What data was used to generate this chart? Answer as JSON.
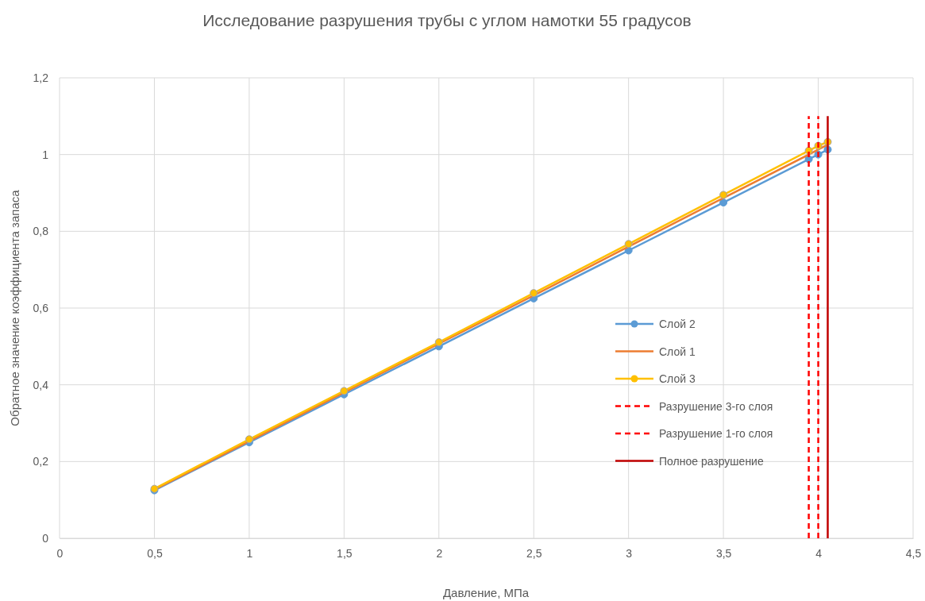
{
  "chart_data": {
    "type": "line",
    "title": "Исследование разрушения трубы с углом намотки 55 градусов",
    "xlabel": "Давление, МПа",
    "ylabel": "Обратное значение коэффициента запаса",
    "x": [
      0.5,
      1,
      1.5,
      2,
      2.5,
      3,
      3.5,
      3.95,
      4,
      4.05
    ],
    "series": [
      {
        "name": "Слой 2",
        "color": "#5b9bd5",
        "marker": "circle",
        "values": [
          0.125,
          0.25,
          0.375,
          0.5,
          0.625,
          0.75,
          0.875,
          0.988,
          1.0,
          1.013
        ]
      },
      {
        "name": "Слой 1",
        "color": "#ed7d31",
        "marker": "none",
        "values": [
          0.127,
          0.253,
          0.38,
          0.507,
          0.633,
          0.76,
          0.887,
          1.0,
          1.013,
          1.026
        ]
      },
      {
        "name": "Слой 3",
        "color": "#ffc000",
        "marker": "circle",
        "values": [
          0.129,
          0.258,
          0.384,
          0.511,
          0.639,
          0.767,
          0.895,
          1.01,
          1.023,
          1.033
        ]
      },
      {
        "name": "Разрушение 3-го слоя",
        "color": "#ff0000",
        "marker": "none",
        "line_style": "dashed",
        "x": [
          3.95,
          3.95
        ],
        "values": [
          0,
          1.1
        ]
      },
      {
        "name": "Разрушение 1-го слоя",
        "color": "#ff0000",
        "marker": "none",
        "line_style": "dashed",
        "x": [
          4,
          4
        ],
        "values": [
          0,
          1.1
        ]
      },
      {
        "name": "Полное разрушение",
        "color": "#c00000",
        "marker": "none",
        "line_style": "solid",
        "x": [
          4.05,
          4.05
        ],
        "values": [
          0,
          1.1
        ]
      }
    ],
    "xlim": [
      0,
      4.5
    ],
    "xticks": [
      0,
      {
        "value": 0.5,
        "label": "0,5"
      },
      1,
      {
        "value": 1.5,
        "label": "1,5"
      },
      2,
      {
        "value": 2.5,
        "label": "2,5"
      },
      3,
      {
        "value": 3.5,
        "label": "3,5"
      },
      4,
      {
        "value": 4.5,
        "label": "4,5"
      }
    ],
    "ylim": [
      0,
      1.2
    ],
    "yticks": [
      0,
      {
        "value": 0.2,
        "label": "0,2"
      },
      {
        "value": 0.4,
        "label": "0,4"
      },
      {
        "value": 0.6,
        "label": "0,6"
      },
      {
        "value": 0.8,
        "label": "0,8"
      },
      1,
      {
        "value": 1.2,
        "label": "1,2"
      }
    ],
    "grid": true,
    "legend": "right"
  }
}
